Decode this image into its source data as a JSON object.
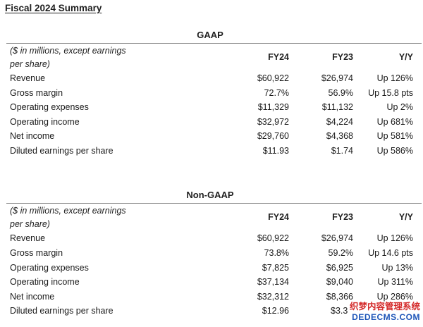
{
  "title": "Fiscal 2024 Summary",
  "columns": {
    "fy24": "FY24",
    "fy23": "FY23",
    "yy": "Y/Y"
  },
  "unit_note": {
    "line1": "($ in millions, except earnings",
    "line2": "per share)"
  },
  "gaap": {
    "heading": "GAAP",
    "rows": [
      {
        "label": "Revenue",
        "fy24": "$60,922",
        "fy23": "$26,974",
        "yy": "Up 126%"
      },
      {
        "label": "Gross margin",
        "fy24": "72.7%",
        "fy23": "56.9%",
        "yy": "Up 15.8 pts"
      },
      {
        "label": "Operating expenses",
        "fy24": "$11,329",
        "fy23": "$11,132",
        "yy": "Up 2%"
      },
      {
        "label": "Operating income",
        "fy24": "$32,972",
        "fy23": "$4,224",
        "yy": "Up 681%"
      },
      {
        "label": "Net income",
        "fy24": "$29,760",
        "fy23": "$4,368",
        "yy": "Up 581%"
      },
      {
        "label": "Diluted earnings per share",
        "fy24": "$11.93",
        "fy23": "$1.74",
        "yy": "Up 586%"
      }
    ]
  },
  "nongaap": {
    "heading": "Non-GAAP",
    "rows": [
      {
        "label": "Revenue",
        "fy24": "$60,922",
        "fy23": "$26,974",
        "yy": "Up 126%"
      },
      {
        "label": "Gross margin",
        "fy24": "73.8%",
        "fy23": "59.2%",
        "yy": "Up 14.6 pts"
      },
      {
        "label": "Operating expenses",
        "fy24": "$7,825",
        "fy23": "$6,925",
        "yy": "Up 13%"
      },
      {
        "label": "Operating income",
        "fy24": "$37,134",
        "fy23": "$9,040",
        "yy": "Up 311%"
      },
      {
        "label": "Net income",
        "fy24": "$32,312",
        "fy23": "$8,366",
        "yy": "Up 286%"
      },
      {
        "label": "Diluted earnings per share",
        "fy24": "$12.96",
        "fy23": "$3.3",
        "yy": ""
      }
    ]
  },
  "watermark": {
    "line1": "织梦内容管理系统",
    "line2": "DEDECMS.COM"
  }
}
